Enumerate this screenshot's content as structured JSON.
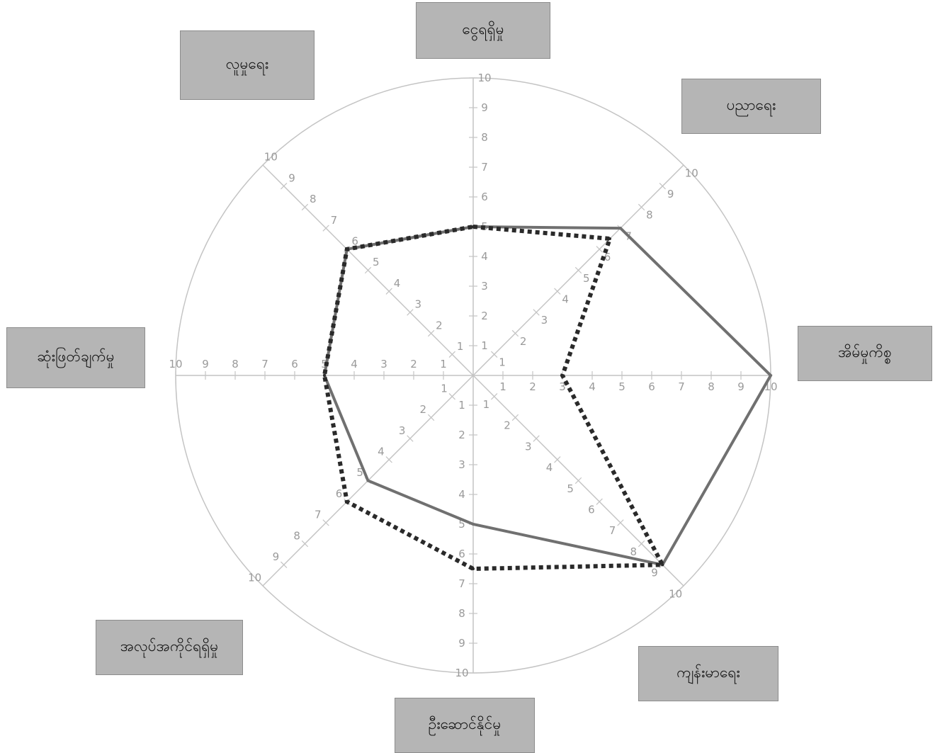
{
  "chart_data": {
    "type": "radar",
    "title": "",
    "axes": [
      "ငွေရရှိမှု",
      "ပညာရေး",
      "အိမ်မှုကိစ္စ",
      "ကျန်းမာရေး",
      "ဦးဆောင်နိုင်မှု",
      "အလုပ်အကိုင်ရရှိမှု",
      "ဆုံးဖြတ်ချက်မှု",
      "လူမှုရေး"
    ],
    "scale": {
      "min": 0,
      "max": 10,
      "step": 1
    },
    "tick_labels": [
      "1",
      "2",
      "3",
      "4",
      "5",
      "6",
      "7",
      "8",
      "9",
      "10"
    ],
    "series": [
      {
        "style": "solid",
        "color": "#707070",
        "values": [
          5,
          7,
          10,
          9,
          5,
          5,
          5,
          6
        ]
      },
      {
        "style": "dotted",
        "color": "#2a2a2a",
        "values": [
          5,
          6.5,
          3,
          9,
          6.5,
          6,
          5,
          6
        ]
      }
    ],
    "grid": true,
    "outer_circle": true,
    "legend": "none"
  }
}
